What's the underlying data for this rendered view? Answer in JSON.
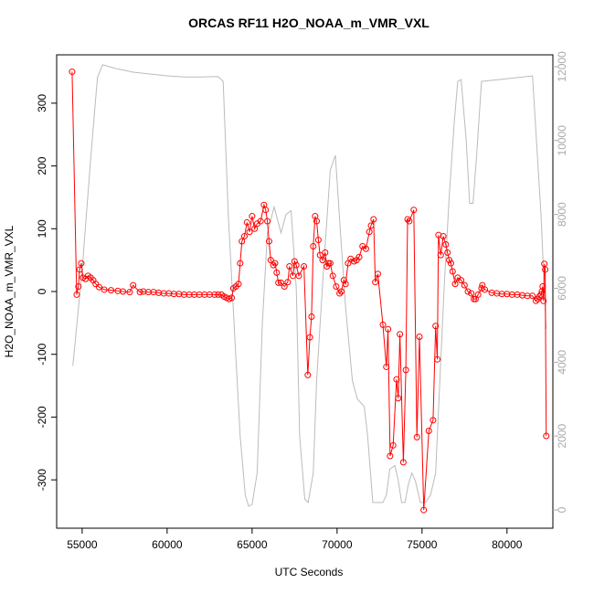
{
  "chart_data": {
    "type": "line",
    "title": "ORCAS RF11 H2O_NOAA_m_VMR_VXL",
    "x_label": "UTC Seconds",
    "y_label": "H2O_NOAA_m_VMR_VXL",
    "xlim": [
      53500,
      82700
    ],
    "xticks": [
      55000,
      60000,
      65000,
      70000,
      75000,
      80000
    ],
    "ylim": [
      -377,
      377
    ],
    "yticks": [
      -300,
      -200,
      -100,
      0,
      100,
      200,
      300
    ],
    "y2lim": [
      -495,
      12320
    ],
    "y2ticks": [
      0,
      2000,
      4000,
      6000,
      8000,
      10000,
      12000
    ],
    "y2color": "#aaaaaa",
    "series": [
      {
        "color": "#bbbbbb",
        "axis": "y2",
        "markers": false,
        "x": [
          54450,
          55000,
          55500,
          55900,
          56200,
          57000,
          58000,
          59000,
          60000,
          61000,
          62000,
          63000,
          63300,
          63600,
          64000,
          64300,
          64600,
          64800,
          65000,
          65300,
          65600,
          65900,
          66300,
          66700,
          67000,
          67300,
          67600,
          67800,
          68100,
          68300,
          68600,
          68800,
          69000,
          69200,
          69600,
          69900,
          70200,
          70500,
          70900,
          71200,
          71600,
          71800,
          72100,
          72400,
          72700,
          72900,
          73100,
          73400,
          73600,
          73800,
          74000,
          74200,
          74400,
          74600,
          74900,
          75200,
          75500,
          75800,
          76000,
          76300,
          76600,
          76900,
          77100,
          77300,
          77600,
          77800,
          78000,
          78200,
          78500,
          79500,
          80500,
          81500,
          82000,
          82300
        ],
        "values": [
          3900,
          6500,
          9500,
          11700,
          12050,
          11950,
          11850,
          11800,
          11750,
          11720,
          11720,
          11730,
          11600,
          8000,
          4500,
          2000,
          400,
          100,
          150,
          1000,
          5000,
          7500,
          8200,
          7500,
          8000,
          8100,
          6000,
          2000,
          300,
          200,
          1000,
          3500,
          5000,
          6500,
          9200,
          9600,
          7500,
          5500,
          3500,
          3000,
          2800,
          2000,
          200,
          200,
          200,
          400,
          1100,
          1200,
          800,
          200,
          200,
          700,
          1000,
          800,
          200,
          200,
          400,
          1000,
          3000,
          6000,
          8500,
          10500,
          11600,
          11650,
          10000,
          8300,
          8300,
          9500,
          11600,
          11650,
          11700,
          11750,
          8000,
          4900
        ]
      },
      {
        "color": "#ff0000",
        "axis": "y",
        "markers": true,
        "x": [
          54410,
          54680,
          54780,
          54850,
          54950,
          55050,
          55200,
          55350,
          55500,
          55650,
          55800,
          56000,
          56300,
          56700,
          57100,
          57400,
          57800,
          58000,
          58400,
          58600,
          58900,
          59200,
          59500,
          59800,
          60100,
          60400,
          60700,
          61000,
          61300,
          61600,
          61900,
          62200,
          62500,
          62800,
          63000,
          63200,
          63350,
          63500,
          63650,
          63800,
          63900,
          64050,
          64200,
          64300,
          64400,
          64550,
          64700,
          64850,
          65000,
          65150,
          65300,
          65500,
          65700,
          65800,
          65900,
          66000,
          66100,
          66250,
          66350,
          66450,
          66550,
          66700,
          66900,
          67100,
          67200,
          67400,
          67500,
          67600,
          67750,
          68050,
          68280,
          68400,
          68500,
          68600,
          68710,
          68800,
          68900,
          69000,
          69150,
          69300,
          69400,
          69500,
          69600,
          69750,
          69950,
          70150,
          70250,
          70400,
          70500,
          70650,
          70800,
          71000,
          71150,
          71300,
          71500,
          71700,
          71900,
          72000,
          72150,
          72250,
          72400,
          72700,
          72900,
          73000,
          73120,
          73300,
          73500,
          73600,
          73700,
          73900,
          74050,
          74150,
          74250,
          74515,
          74700,
          74850,
          75100,
          75400,
          75650,
          75800,
          75900,
          75970,
          76100,
          76250,
          76400,
          76500,
          76600,
          76700,
          76800,
          76950,
          77100,
          77300,
          77500,
          77700,
          77900,
          78050,
          78150,
          78300,
          78500,
          78550,
          78700,
          79100,
          79400,
          79700,
          80000,
          80300,
          80600,
          80900,
          81200,
          81500,
          81700,
          81800,
          81900,
          82000,
          82050,
          82100,
          82150,
          82200,
          82250,
          82310
        ],
        "values": [
          350,
          -5,
          8,
          35,
          45,
          22,
          20,
          25,
          22,
          18,
          12,
          7,
          3,
          2,
          1,
          0,
          -1,
          10,
          -1,
          0,
          -1,
          -1,
          -2,
          -3,
          -3,
          -4,
          -4,
          -5,
          -5,
          -5,
          -5,
          -5,
          -5,
          -5,
          -5,
          -5,
          -8,
          -10,
          -12,
          -10,
          5,
          8,
          12,
          45,
          80,
          88,
          110,
          95,
          120,
          100,
          108,
          112,
          138,
          130,
          112,
          80,
          50,
          42,
          45,
          30,
          14,
          14,
          8,
          15,
          40,
          25,
          48,
          42,
          25,
          40,
          -133,
          -73,
          -40,
          72,
          120,
          112,
          82,
          58,
          50,
          62,
          40,
          45,
          45,
          25,
          8,
          -3,
          0,
          18,
          12,
          45,
          52,
          48,
          50,
          55,
          72,
          68,
          95,
          105,
          115,
          15,
          28,
          -53,
          -120,
          -60,
          -262,
          -245,
          -140,
          -170,
          -68,
          -272,
          -125,
          115,
          112,
          130,
          -232,
          -72,
          -348,
          -222,
          -205,
          -55,
          -108,
          90,
          58,
          88,
          75,
          62,
          50,
          45,
          32,
          12,
          22,
          18,
          10,
          0,
          -3,
          -12,
          -12,
          -5,
          5,
          10,
          3,
          -2,
          -3,
          -4,
          -4,
          -5,
          -5,
          -6,
          -7,
          -7,
          -15,
          -12,
          -8,
          -5,
          0,
          8,
          -15,
          44,
          35,
          -230
        ]
      }
    ]
  }
}
